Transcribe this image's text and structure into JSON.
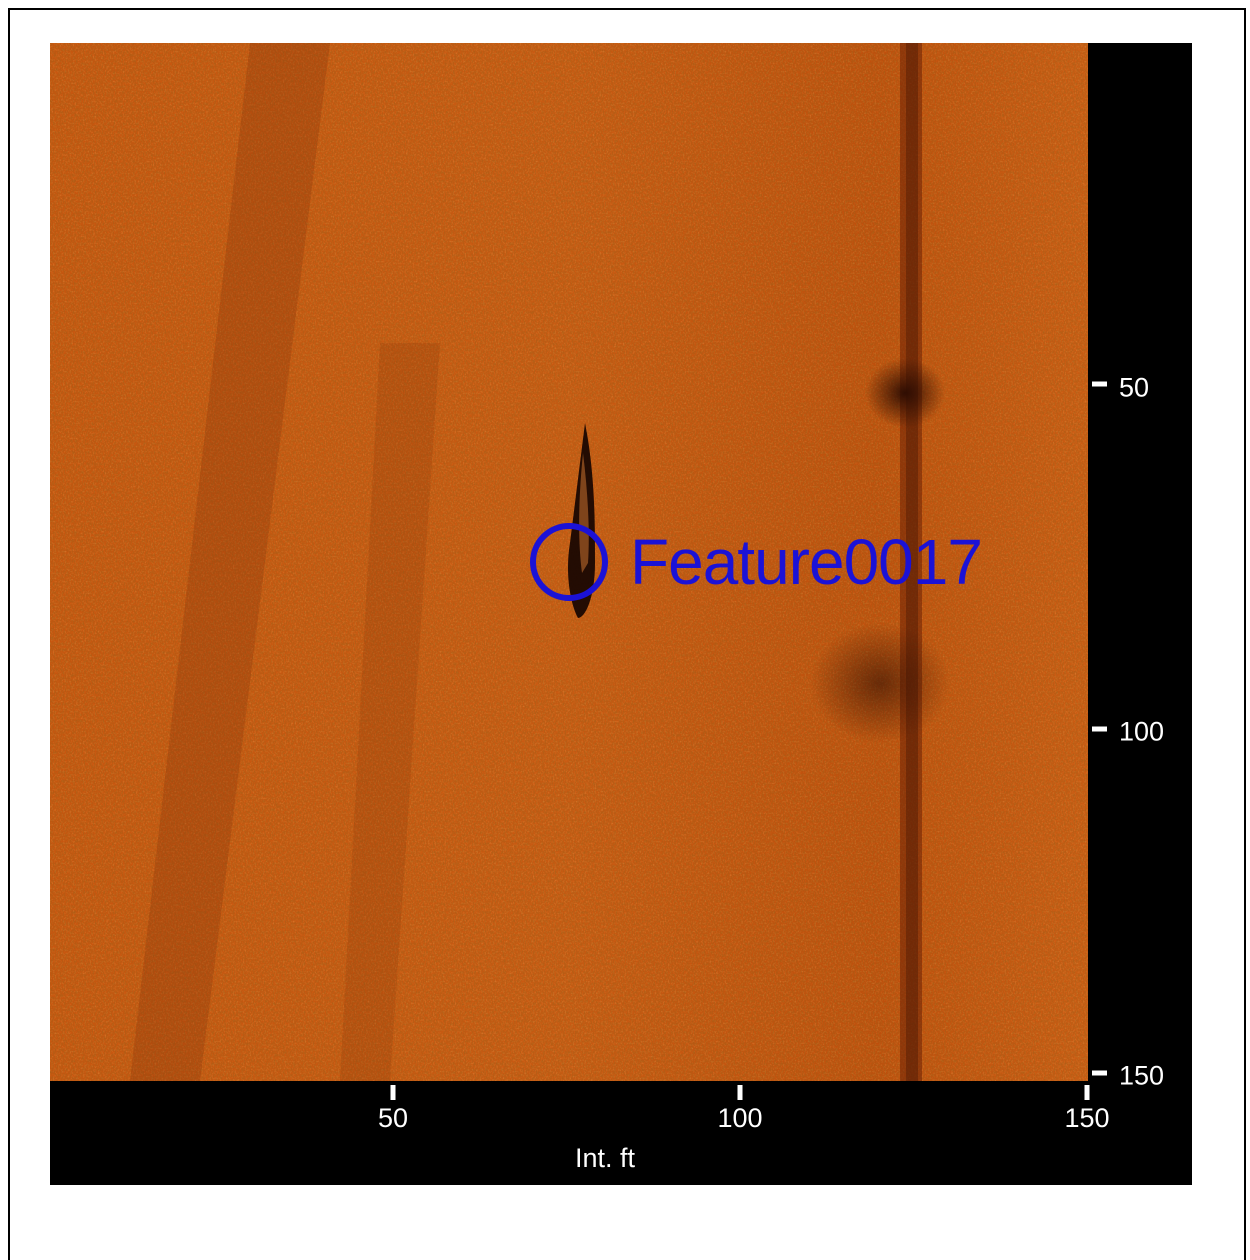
{
  "image": {
    "description_colors": {
      "seabed": "#c4520f",
      "shadow": "#3a1204",
      "marker": "#1b12d6",
      "background": "#000000"
    }
  },
  "feature": {
    "label": "Feature0017",
    "marker_color": "#1b12d6"
  },
  "axes": {
    "x_title": "Int. ft",
    "x_ticks": [
      "50",
      "100",
      "150"
    ],
    "y_ticks": [
      "50",
      "100",
      "150"
    ]
  }
}
